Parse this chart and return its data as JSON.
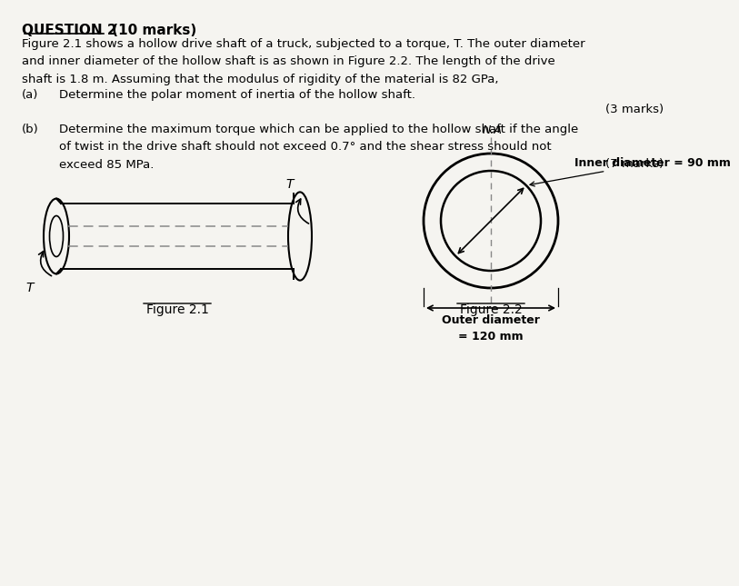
{
  "bg_color": "#f5f4f0",
  "body_text_1": "Figure 2.1 shows a hollow drive shaft of a truck, subjected to a torque, T. The outer diameter\nand inner diameter of the hollow shaft is as shown in Figure 2.2. The length of the drive\nshaft is 1.8 m. Assuming that the modulus of rigidity of the material is 82 GPa,",
  "part_a_label": "(a)",
  "part_a_text": "Determine the polar moment of inertia of the hollow shaft.",
  "part_a_marks": "(3 marks)",
  "part_b_label": "(b)",
  "part_b_text": "Determine the maximum torque which can be applied to the hollow shaft if the angle\nof twist in the drive shaft should not exceed 0.7° and the shear stress should not\nexceed 85 MPa.",
  "part_b_marks": "(7 marks)",
  "fig1_label": "Figure 2.1",
  "fig2_label": "Figure 2.2",
  "inner_diameter_label": "Inner diameter = 90 mm",
  "outer_diameter_label": "Outer diameter\n= 120 mm",
  "na_label": "N.A",
  "line_color": "#000000",
  "text_color": "#000000",
  "dashed_color": "#888888"
}
